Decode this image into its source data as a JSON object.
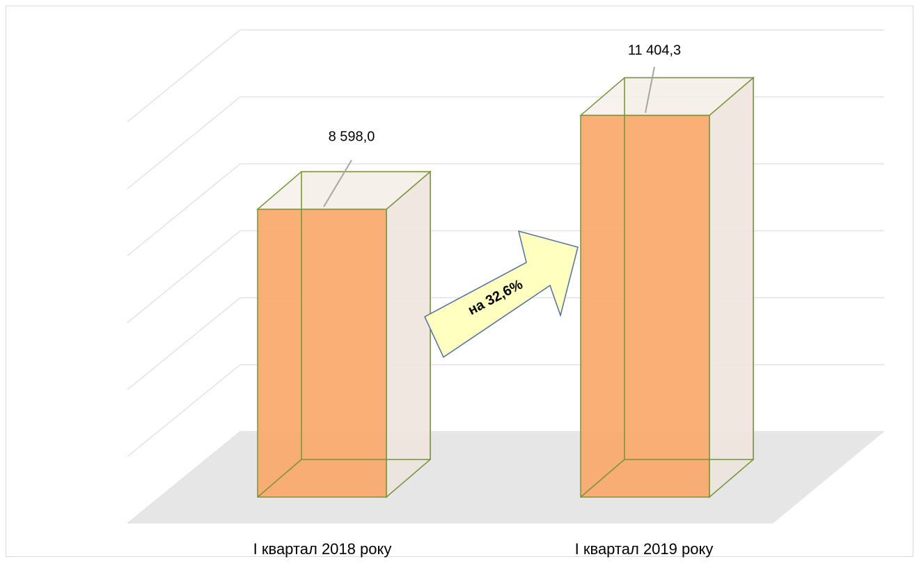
{
  "chart_data": {
    "type": "bar3d",
    "categories": [
      "І квартал 2018 року",
      "І квартал 2019 року"
    ],
    "values": [
      8598.0,
      11404.3
    ],
    "value_labels": [
      "8 598,0",
      "11 404,3"
    ],
    "color": "#f9a86a",
    "edge_color": "#77933c",
    "ylim": [
      0,
      12000
    ],
    "yticks": [
      0,
      2000,
      4000,
      6000,
      8000,
      10000,
      12000
    ],
    "grid": true,
    "annotation": "на 32,6%"
  }
}
